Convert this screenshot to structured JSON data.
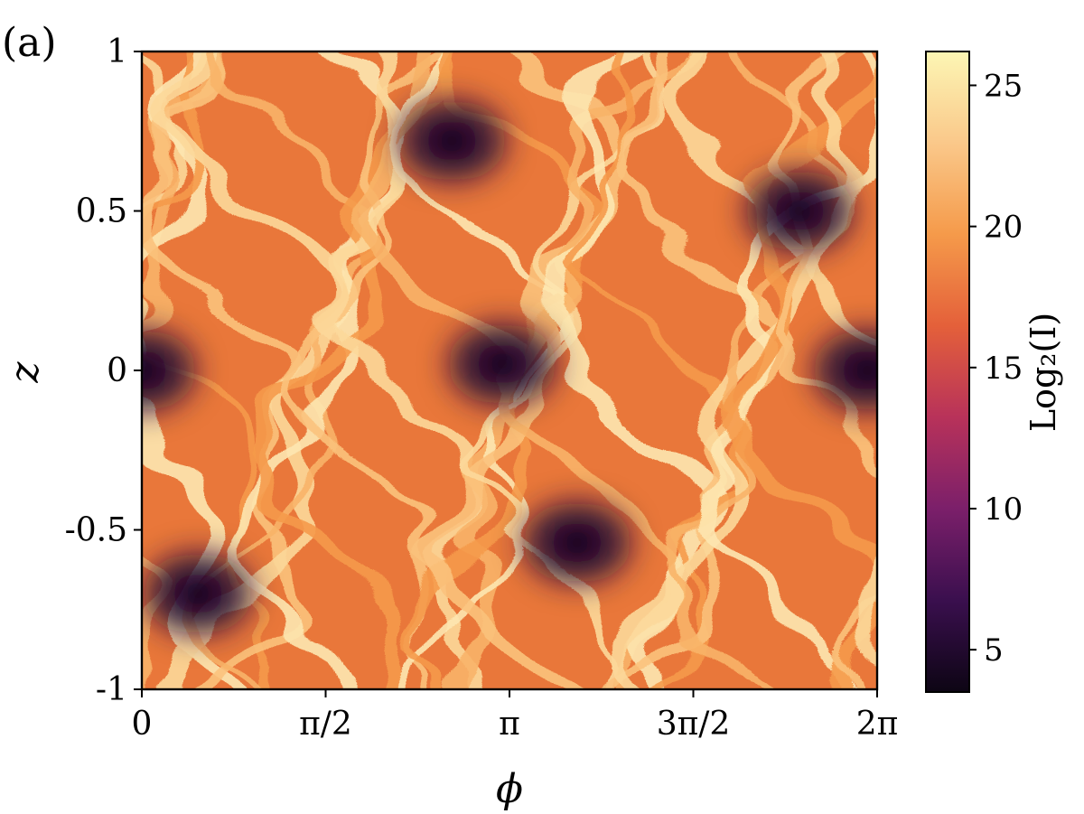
{
  "panel_label": "(a)",
  "chart_data": {
    "type": "heatmap",
    "title": "",
    "xlabel": "ϕ",
    "ylabel": "z",
    "xlim": [
      0,
      6.283185307
    ],
    "ylim": [
      -1,
      1
    ],
    "x_ticks": [
      {
        "value": 0,
        "label": "0"
      },
      {
        "value": 1.570796327,
        "label": "π/2"
      },
      {
        "value": 3.141592654,
        "label": "π"
      },
      {
        "value": 4.71238898,
        "label": "3π/2"
      },
      {
        "value": 6.283185307,
        "label": "2π"
      }
    ],
    "y_ticks": [
      {
        "value": 1,
        "label": "1"
      },
      {
        "value": 0.5,
        "label": "0.5"
      },
      {
        "value": 0,
        "label": "0"
      },
      {
        "value": -0.5,
        "label": "-0.5"
      },
      {
        "value": -1,
        "label": "-1"
      }
    ],
    "colorbar": {
      "label": "Log₂(I)",
      "range": [
        3.5,
        26.2
      ],
      "ticks": [
        {
          "value": 25,
          "label": "25"
        },
        {
          "value": 20,
          "label": "20"
        },
        {
          "value": 15,
          "label": "15"
        },
        {
          "value": 10,
          "label": "10"
        },
        {
          "value": 5,
          "label": "5"
        }
      ],
      "colormap": "inferno-like",
      "colors": [
        "#0d0514",
        "#3a0f4e",
        "#7b1f6a",
        "#b8325a",
        "#e4603a",
        "#f59a4a",
        "#fac88a",
        "#fcf6b4"
      ]
    },
    "dark_regions": [
      {
        "phi": 0.0,
        "z": 0.0
      },
      {
        "phi": 3.08,
        "z": 0.02
      },
      {
        "phi": 6.2,
        "z": 0.0
      },
      {
        "phi": 2.65,
        "z": 0.72
      },
      {
        "phi": 0.48,
        "z": -0.7
      },
      {
        "phi": 3.72,
        "z": -0.54
      },
      {
        "phi": 5.62,
        "z": 0.5
      }
    ]
  }
}
